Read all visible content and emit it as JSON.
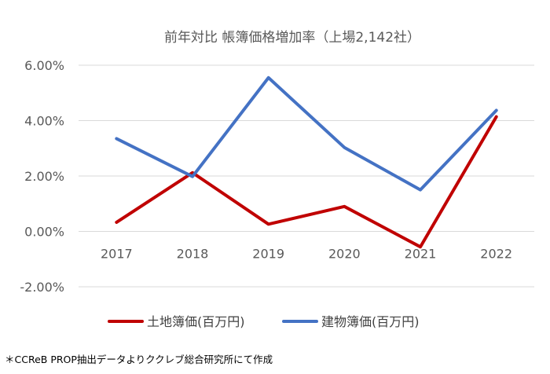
{
  "chart_data": {
    "type": "line",
    "title": "前年対比 帳簿価格増加率（上場2,142社）",
    "categories": [
      "2017",
      "2018",
      "2019",
      "2020",
      "2021",
      "2022"
    ],
    "series": [
      {
        "name": "土地簿価(百万円)",
        "color": "#c00000",
        "values": [
          0.33,
          2.12,
          0.26,
          0.9,
          -0.56,
          4.14
        ]
      },
      {
        "name": "建物簿価(百万円)",
        "color": "#4472c4",
        "values": [
          3.35,
          1.98,
          5.55,
          3.03,
          1.5,
          4.37
        ]
      }
    ],
    "y_ticks": [
      "-2.00%",
      "0.00%",
      "2.00%",
      "4.00%",
      "6.00%"
    ],
    "ylim": [
      -2,
      6
    ],
    "grid": true,
    "legend_position": "bottom"
  },
  "footnote": "＊CCReB PROP抽出データよりククレブ総合研究所にて作成"
}
